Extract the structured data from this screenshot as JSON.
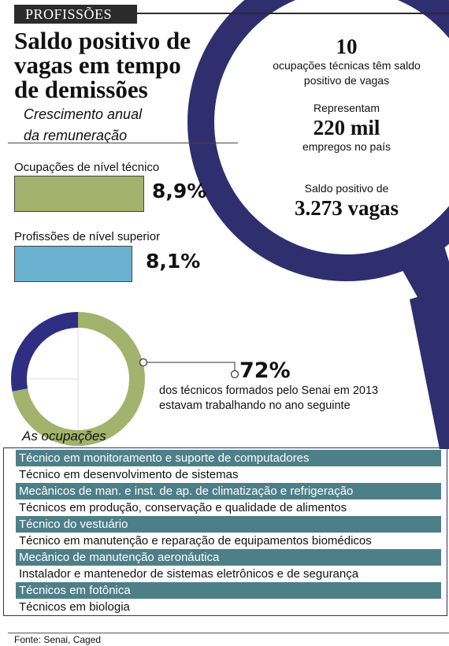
{
  "header": {
    "tag": "PROFISSÕES",
    "title_lines": [
      "Saldo positivo de",
      "vagas em tempo",
      "de demissões"
    ],
    "subtitle_lines": [
      "Crescimento anual",
      "da remuneração"
    ]
  },
  "highlights": [
    {
      "big": "10",
      "text": [
        "ocupações técnicas têm saldo",
        "positivo de vagas"
      ]
    },
    {
      "pre": "Representam",
      "big": "220 mil",
      "text": [
        "empregos no país"
      ]
    },
    {
      "pre": "Saldo positivo de",
      "big": "3.273 vagas"
    }
  ],
  "chart_data": [
    {
      "type": "bar",
      "categories": [
        "Ocupações de nível técnico",
        "Profissões de nível superior"
      ],
      "values": [
        8.9,
        8.1
      ],
      "value_labels": [
        "8,9%",
        "8,1%"
      ],
      "colors": [
        "#a3b26c",
        "#6ab1d0"
      ]
    },
    {
      "type": "pie",
      "slices": [
        {
          "value": 72,
          "color": "#a3b26c"
        },
        {
          "value": 28,
          "color": "#2f2e83"
        }
      ],
      "label": "72%",
      "description": [
        "dos técnicos formados pelo Senai em 2013",
        "estavam trabalhando no ano seguinte"
      ]
    }
  ],
  "occupations": {
    "title": "As ocupações",
    "items": [
      "Técnico em monitoramento e suporte de computadores",
      "Técnico em desenvolvimento de sistemas",
      "Mecânicos de man. e inst. de ap. de climatização e refrigeração",
      "Técnicos em produção, conservação e qualidade de alimentos",
      "Técnico do vestuário",
      "Técnico em manutenção e reparação de equipamentos biomédicos",
      "Mecânico de manutenção aeronáutica",
      "Instalador e mantenedor de sistemas eletrônicos e de segurança",
      "Técnicos em fotônica",
      "Técnicos em biologia"
    ]
  },
  "source": "Fonte: Senai, Caged",
  "colors": {
    "navy": "#2f2e6e",
    "row_shade": "#4d7f89",
    "olive": "#a3b26c",
    "sky": "#6ab1d0"
  }
}
